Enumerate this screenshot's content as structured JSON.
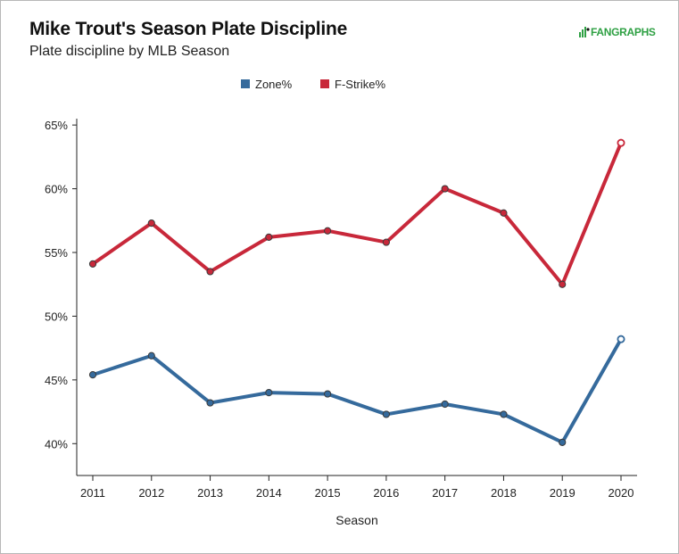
{
  "header": {
    "title": "Mike Trout's Season Plate Discipline",
    "subtitle": "Plate discipline by MLB Season",
    "logo_text": "FANGRAPHS"
  },
  "colors": {
    "series": [
      "#356a9c",
      "#c8283a"
    ],
    "axis": "#222222",
    "brand": "#2ea043"
  },
  "chart_data": {
    "type": "line",
    "title": "Mike Trout's Season Plate Discipline",
    "subtitle": "Plate discipline by MLB Season",
    "xlabel": "Season",
    "ylabel": "",
    "x": [
      2011,
      2012,
      2013,
      2014,
      2015,
      2016,
      2017,
      2018,
      2019,
      2020
    ],
    "x_tick_labels": [
      "2011",
      "2012",
      "2013",
      "2014",
      "2015",
      "2016",
      "2017",
      "2018",
      "2019",
      "2020"
    ],
    "ylim": [
      37.5,
      65.5
    ],
    "y_ticks": [
      40,
      45,
      50,
      55,
      60,
      65
    ],
    "y_tick_labels": [
      "40%",
      "45%",
      "50%",
      "55%",
      "60%",
      "65%"
    ],
    "grid": false,
    "legend_position": "top-center",
    "series": [
      {
        "name": "Zone%",
        "values": [
          45.4,
          46.9,
          43.2,
          44.0,
          43.9,
          42.3,
          43.1,
          42.3,
          40.1,
          48.2
        ],
        "color": "#356a9c",
        "last_point_open": true
      },
      {
        "name": "F-Strike%",
        "values": [
          54.1,
          57.3,
          53.5,
          56.2,
          56.7,
          55.8,
          60.0,
          58.1,
          52.5,
          63.6
        ],
        "color": "#c8283a",
        "last_point_open": true
      }
    ]
  }
}
